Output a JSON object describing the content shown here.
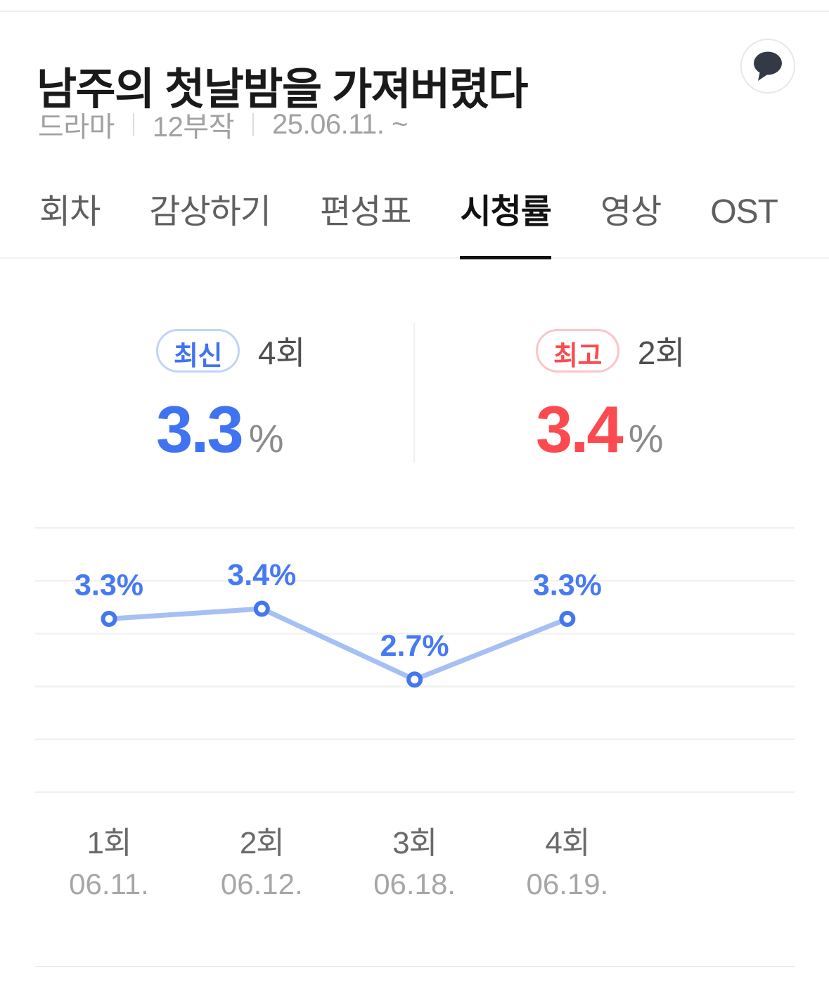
{
  "header": {
    "title": "남주의 첫날밤을 가져버렸다",
    "meta": [
      "드라마",
      "12부작",
      "25.06.11. ~"
    ],
    "comment_icon": "speech-bubble-icon"
  },
  "tabs": {
    "items": [
      {
        "label": "회차"
      },
      {
        "label": "감상하기"
      },
      {
        "label": "편성표"
      },
      {
        "label": "시청률"
      },
      {
        "label": "영상"
      },
      {
        "label": "OST"
      }
    ],
    "active_label": "시청률"
  },
  "stats": {
    "latest": {
      "badge_label": "최신",
      "episode": "4회",
      "value": "3.3",
      "unit": "%"
    },
    "highest": {
      "badge_label": "최고",
      "episode": "2회",
      "value": "3.4",
      "unit": "%"
    }
  },
  "chart_data": {
    "type": "line",
    "categories": [
      "1회",
      "2회",
      "3회",
      "4회"
    ],
    "x_sub_labels": [
      "06.11.",
      "06.12.",
      "06.18.",
      "06.19."
    ],
    "values": [
      3.3,
      3.4,
      2.7,
      3.3
    ],
    "point_labels": [
      "3.3%",
      "3.4%",
      "2.7%",
      "3.3%"
    ],
    "unit": "%",
    "grid": true,
    "gridline_count": 6,
    "legend": "none",
    "line_color": "#a6c0f4",
    "point_color": "#4377f0",
    "point_fill": "#ffffff",
    "label_color": "#4779f3",
    "grid_color": "#f1f1f1",
    "category_color": "#6a6a6a",
    "date_color": "#a6a6a6"
  },
  "colors": {
    "accent_blue": "#4073f1",
    "accent_red": "#fb4a50",
    "badge_blue_border": "#c3d3f8",
    "badge_red_border": "#fbc5c8",
    "unit_gray": "#8b8b8b",
    "bubble_dark": "#333a46"
  }
}
